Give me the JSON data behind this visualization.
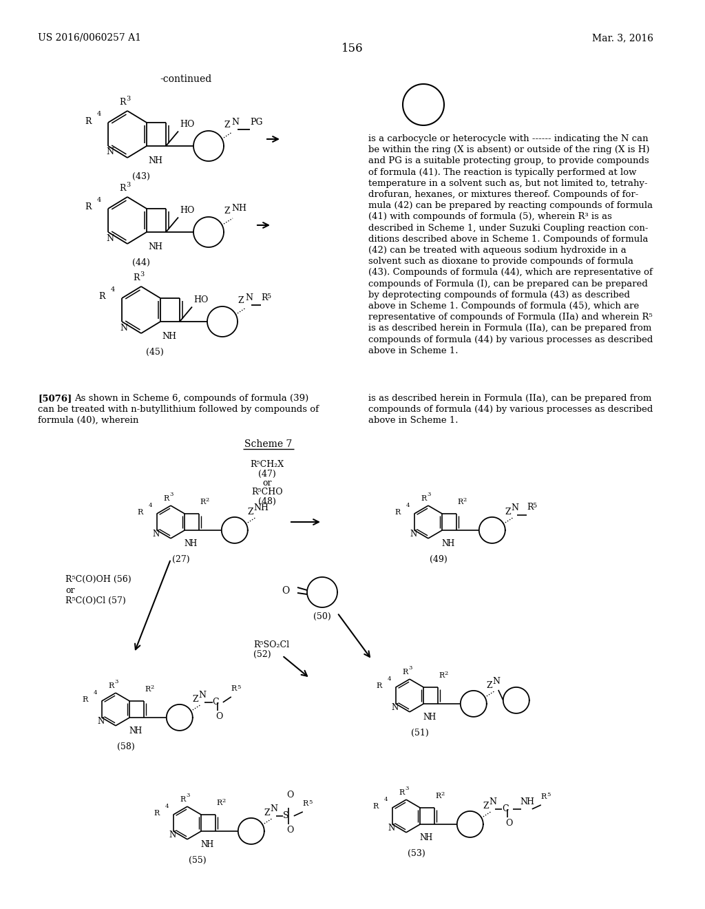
{
  "page_header_left": "US 2016/0060257 A1",
  "page_header_right": "Mar. 3, 2016",
  "page_number": "156",
  "bg_color": "#ffffff"
}
